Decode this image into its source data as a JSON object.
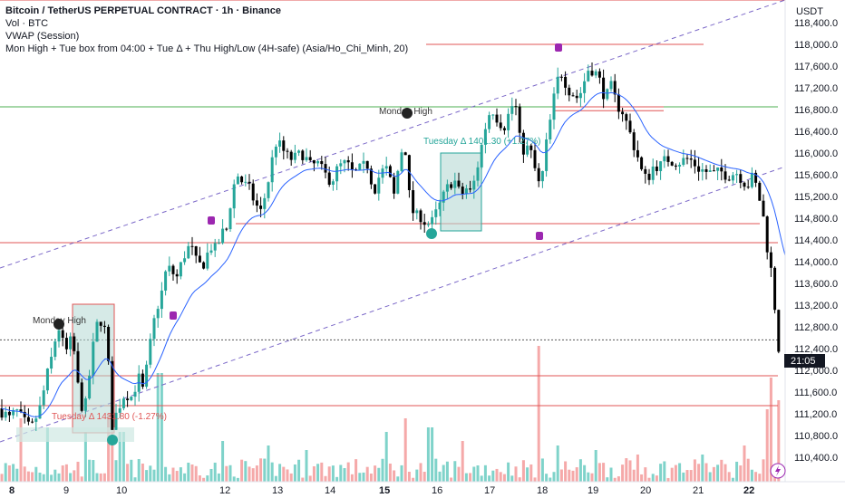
{
  "header": {
    "title": "Bitcoin / TetherUS PERPETUAL CONTRACT · 1h · Binance",
    "vol": "Vol · BTC",
    "vwap": "VWAP (Session)",
    "indicator": "Mon High + Tue box from 04:00 + Tue Δ + Thu High/Low (4H-safe) (Asia/Ho_Chi_Minh, 20)"
  },
  "currency": "USDT",
  "current_price_label": "21:05",
  "annotations": {
    "monday_high_1": "Monday High",
    "monday_high_2": "Monday High",
    "tuesday_delta_1": "Tuesday Δ 1401.30 (+1.27%)",
    "tuesday_delta_2": "Tuesday Δ 1431.80 (-1.27%)"
  },
  "colors": {
    "up": "#26a69a",
    "down": "#000000",
    "vol_up": "#7fd3ca",
    "vol_down": "#f5a9a9",
    "vwap": "#2962ff",
    "red_level": "#e05555",
    "green_level": "#4caf50",
    "channel": "#7b68c8",
    "marker_purple": "#9c27b0",
    "marker_dark": "#222222",
    "marker_green": "#26a69a"
  },
  "chart_data": {
    "type": "candlestick",
    "x_labels": [
      "8",
      "9",
      "10",
      "12",
      "13",
      "14",
      "15",
      "16",
      "17",
      "18",
      "19",
      "20",
      "21",
      "22"
    ],
    "y_ticks": [
      110400,
      110800,
      111200,
      111600,
      112000,
      112400,
      112800,
      113200,
      113600,
      114000,
      114400,
      114800,
      115200,
      115600,
      116000,
      116400,
      116800,
      117200,
      117600,
      118000,
      118400
    ],
    "ylim": [
      110100,
      118650
    ],
    "price_path": [
      [
        0,
        111300
      ],
      [
        10,
        111100
      ],
      [
        18,
        111250
      ],
      [
        26,
        111050
      ],
      [
        34,
        110900
      ],
      [
        44,
        111300
      ],
      [
        52,
        111900
      ],
      [
        58,
        112300
      ],
      [
        64,
        112850
      ],
      [
        72,
        112300
      ],
      [
        80,
        112600
      ],
      [
        88,
        111400
      ],
      [
        94,
        111300
      ],
      [
        100,
        112100
      ],
      [
        106,
        112800
      ],
      [
        112,
        112950
      ],
      [
        116,
        112700
      ],
      [
        120,
        112000
      ],
      [
        124,
        110950
      ],
      [
        130,
        111300
      ],
      [
        138,
        111600
      ],
      [
        146,
        111500
      ],
      [
        152,
        111900
      ],
      [
        158,
        111600
      ],
      [
        166,
        112500
      ],
      [
        172,
        113100
      ],
      [
        178,
        113400
      ],
      [
        184,
        113900
      ],
      [
        190,
        113800
      ],
      [
        196,
        113700
      ],
      [
        202,
        114100
      ],
      [
        210,
        114300
      ],
      [
        218,
        113900
      ],
      [
        226,
        114000
      ],
      [
        232,
        114300
      ],
      [
        238,
        114200
      ],
      [
        244,
        114500
      ],
      [
        250,
        114600
      ],
      [
        256,
        115300
      ],
      [
        262,
        115600
      ],
      [
        268,
        115450
      ],
      [
        276,
        115300
      ],
      [
        282,
        115050
      ],
      [
        288,
        114900
      ],
      [
        296,
        115500
      ],
      [
        304,
        116200
      ],
      [
        310,
        116100
      ],
      [
        318,
        115900
      ],
      [
        326,
        115900
      ],
      [
        334,
        116000
      ],
      [
        342,
        115750
      ],
      [
        350,
        115800
      ],
      [
        358,
        115600
      ],
      [
        366,
        115500
      ],
      [
        374,
        115750
      ],
      [
        382,
        115800
      ],
      [
        390,
        115600
      ],
      [
        398,
        115700
      ],
      [
        406,
        115800
      ],
      [
        412,
        115300
      ],
      [
        420,
        115650
      ],
      [
        428,
        115700
      ],
      [
        434,
        115150
      ],
      [
        440,
        115800
      ],
      [
        446,
        116300
      ],
      [
        452,
        115100
      ],
      [
        458,
        114800
      ],
      [
        464,
        114850
      ],
      [
        470,
        114700
      ],
      [
        476,
        114700
      ],
      [
        484,
        115000
      ],
      [
        492,
        115300
      ],
      [
        500,
        115550
      ],
      [
        508,
        115200
      ],
      [
        514,
        115350
      ],
      [
        520,
        115250
      ],
      [
        526,
        115700
      ],
      [
        532,
        116200
      ],
      [
        538,
        116700
      ],
      [
        544,
        116800
      ],
      [
        550,
        116600
      ],
      [
        556,
        116500
      ],
      [
        562,
        116750
      ],
      [
        568,
        117000
      ],
      [
        572,
        116300
      ],
      [
        578,
        116050
      ],
      [
        584,
        116100
      ],
      [
        590,
        115700
      ],
      [
        596,
        115300
      ],
      [
        602,
        116100
      ],
      [
        608,
        116700
      ],
      [
        614,
        117300
      ],
      [
        620,
        117500
      ],
      [
        626,
        117200
      ],
      [
        632,
        117100
      ],
      [
        638,
        117000
      ],
      [
        644,
        117300
      ],
      [
        650,
        117600
      ],
      [
        656,
        117500
      ],
      [
        662,
        117300
      ],
      [
        668,
        117000
      ],
      [
        674,
        117200
      ],
      [
        680,
        116900
      ],
      [
        686,
        116800
      ],
      [
        692,
        116500
      ],
      [
        698,
        116200
      ],
      [
        704,
        115900
      ],
      [
        710,
        115500
      ],
      [
        716,
        115600
      ],
      [
        722,
        115800
      ],
      [
        728,
        115750
      ],
      [
        736,
        115900
      ],
      [
        744,
        115850
      ],
      [
        752,
        115850
      ],
      [
        760,
        115900
      ],
      [
        766,
        115800
      ],
      [
        772,
        115700
      ],
      [
        780,
        115650
      ],
      [
        788,
        115600
      ],
      [
        796,
        115650
      ],
      [
        804,
        115600
      ],
      [
        812,
        115650
      ],
      [
        818,
        115550
      ],
      [
        824,
        115400
      ],
      [
        830,
        115550
      ],
      [
        836,
        115300
      ],
      [
        842,
        114800
      ],
      [
        846,
        114300
      ],
      [
        850,
        113900
      ],
      [
        854,
        113300
      ],
      [
        858,
        112500
      ],
      [
        862,
        112100
      ]
    ],
    "volume_spikes": [
      [
        22,
        70
      ],
      [
        52,
        60
      ],
      [
        96,
        55
      ],
      [
        122,
        75
      ],
      [
        134,
        55
      ],
      [
        176,
        120
      ],
      [
        246,
        45
      ],
      [
        296,
        40
      ],
      [
        338,
        35
      ],
      [
        426,
        55
      ],
      [
        446,
        70
      ],
      [
        474,
        60
      ],
      [
        510,
        45
      ],
      [
        594,
        150
      ],
      [
        614,
        40
      ],
      [
        656,
        35
      ],
      [
        702,
        30
      ],
      [
        776,
        30
      ],
      [
        822,
        40
      ],
      [
        846,
        80
      ],
      [
        852,
        115
      ],
      [
        858,
        90
      ]
    ],
    "levels": [
      {
        "price": 118000,
        "x": [
          470,
          776
        ],
        "color": "#e05555"
      },
      {
        "price": 116850,
        "x": [
          0,
          858
        ],
        "color": "#4caf50"
      },
      {
        "price": 116850,
        "x": [
          612,
          732
        ],
        "color": "#e05555"
      },
      {
        "price": 116780,
        "x": [
          612,
          732
        ],
        "color": "#e05555"
      },
      {
        "price": 114700,
        "x": [
          260,
          838
        ],
        "color": "#e05555"
      },
      {
        "price": 114350,
        "x": [
          0,
          858
        ],
        "color": "#e05555"
      },
      {
        "price": 111900,
        "x": [
          0,
          858
        ],
        "color": "#e05555"
      },
      {
        "price": 111350,
        "x": [
          0,
          858
        ],
        "color": "#e05555"
      },
      {
        "price": 112560,
        "x": [
          0,
          858
        ],
        "color": "#555555",
        "dotted": true
      }
    ]
  }
}
